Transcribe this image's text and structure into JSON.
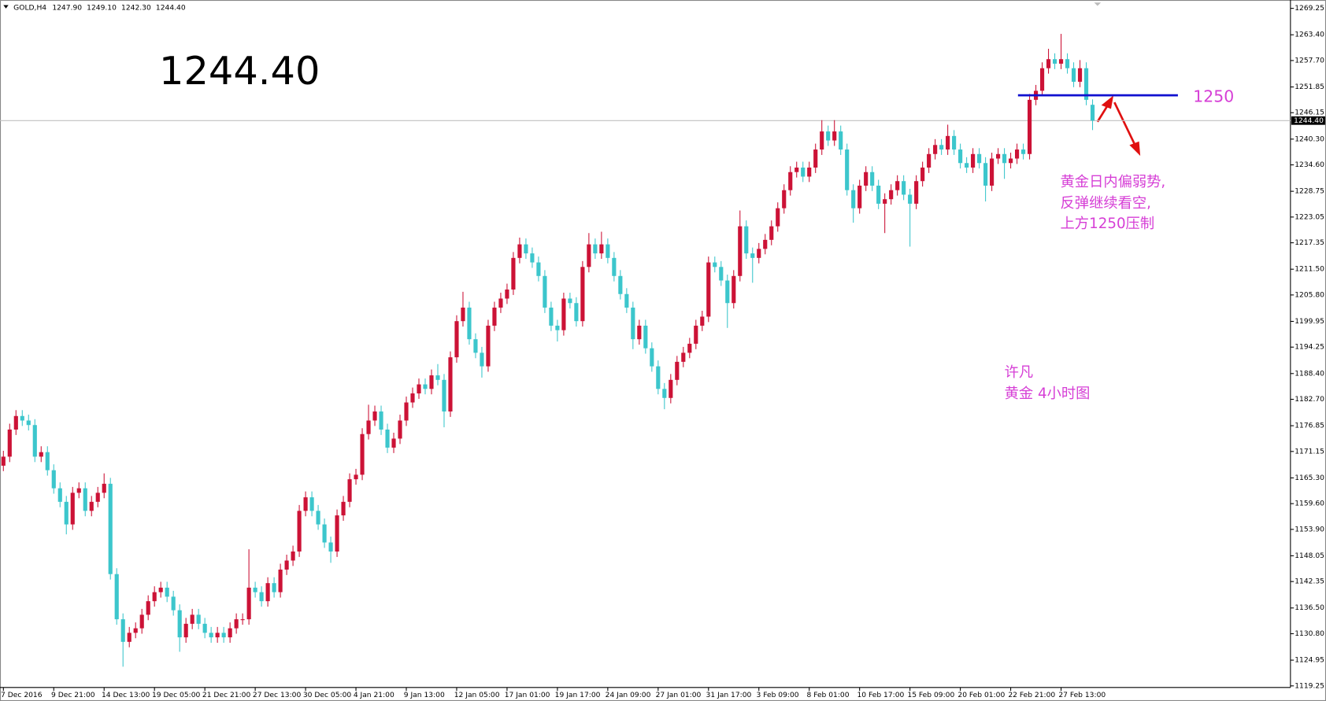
{
  "chart_data": {
    "type": "candlestick",
    "symbol": "GOLD,H4",
    "header_ohlc": [
      "1247.90",
      "1249.10",
      "1242.30",
      "1244.40"
    ],
    "big_price": "1244.40",
    "last_price": {
      "value": 1244.4,
      "label": "1244.40"
    },
    "level": 1250,
    "note": [
      "黄金日内偏弱势,",
      "反弹继续看空,",
      "上方1250压制"
    ],
    "author": [
      "许凡",
      "黄金 4小时图"
    ],
    "bull_color": "#cc1236",
    "bear_color": "#3cc6cc",
    "level_color": "#1010d0",
    "ylim": [
      1118.9,
      1271.1
    ],
    "yticks": [
      1269.25,
      {
        "value": 1263.4,
        "label": "1263.40"
      },
      {
        "value": 1257.7,
        "label": "1257.70"
      },
      1251.85,
      1246.15,
      {
        "value": 1240.3,
        "label": "1240.30"
      },
      {
        "value": 1234.6,
        "label": "1234.60"
      },
      1228.75,
      1223.05,
      1217.35,
      {
        "value": 1211.5,
        "label": "1211.50"
      },
      {
        "value": 1205.8,
        "label": "1205.80"
      },
      1199.95,
      1194.25,
      {
        "value": 1188.4,
        "label": "1188.40"
      },
      {
        "value": 1182.7,
        "label": "1182.70"
      },
      1176.85,
      1171.15,
      {
        "value": 1165.3,
        "label": "1165.30"
      },
      {
        "value": 1159.6,
        "label": "1159.60"
      },
      {
        "value": 1153.9,
        "label": "1153.90"
      },
      1148.05,
      1142.35,
      {
        "value": 1136.5,
        "label": "1136.50"
      },
      {
        "value": 1130.8,
        "label": "1130.80"
      },
      1124.95,
      1119.25
    ],
    "categories": [
      "7 Dec 2016",
      null,
      null,
      null,
      null,
      null,
      null,
      null,
      "9 Dec 21:00",
      null,
      null,
      null,
      null,
      null,
      null,
      null,
      "14 Dec 13:00",
      null,
      null,
      null,
      null,
      null,
      null,
      null,
      "19 Dec 05:00",
      null,
      null,
      null,
      null,
      null,
      null,
      null,
      "21 Dec 21:00",
      null,
      null,
      null,
      null,
      null,
      null,
      null,
      "27 Dec 13:00",
      null,
      null,
      null,
      null,
      null,
      null,
      null,
      "30 Dec 05:00",
      null,
      null,
      null,
      null,
      null,
      null,
      null,
      "4 Jan 21:00",
      null,
      null,
      null,
      null,
      null,
      null,
      null,
      "9 Jan 13:00",
      null,
      null,
      null,
      null,
      null,
      null,
      null,
      "12 Jan 05:00",
      null,
      null,
      null,
      null,
      null,
      null,
      null,
      "17 Jan 01:00",
      null,
      null,
      null,
      null,
      null,
      null,
      null,
      "19 Jan 17:00",
      null,
      null,
      null,
      null,
      null,
      null,
      null,
      "24 Jan 09:00",
      null,
      null,
      null,
      null,
      null,
      null,
      null,
      "27 Jan 01:00",
      null,
      null,
      null,
      null,
      null,
      null,
      null,
      "31 Jan 17:00",
      null,
      null,
      null,
      null,
      null,
      null,
      null,
      "3 Feb 09:00",
      null,
      null,
      null,
      null,
      null,
      null,
      null,
      "8 Feb 01:00",
      null,
      null,
      null,
      null,
      null,
      null,
      null,
      "10 Feb 17:00",
      null,
      null,
      null,
      null,
      null,
      null,
      null,
      "15 Feb 09:00",
      null,
      null,
      null,
      null,
      null,
      null,
      null,
      "20 Feb 01:00",
      null,
      null,
      null,
      null,
      null,
      null,
      null,
      "22 Feb 21:00",
      null,
      null,
      null,
      null,
      null,
      null,
      null,
      "27 Feb 13:00",
      null,
      null,
      null,
      null,
      null
    ],
    "ohlc": [
      [
        1168,
        1171.3,
        1166.8,
        1170
      ],
      [
        1170,
        1177.3,
        1168.8,
        1176
      ],
      [
        1176,
        1180.3,
        1174.8,
        1179
      ],
      [
        1179,
        1180.3,
        1176.8,
        1178
      ],
      [
        1178,
        1179.3,
        1175.8,
        1177
      ],
      [
        1177,
        1178.3,
        1168.8,
        1170
      ],
      [
        1170,
        1172.3,
        1168.8,
        1171
      ],
      [
        1171,
        1172.3,
        1165.8,
        1167
      ],
      [
        1167,
        1168.3,
        1161.8,
        1163
      ],
      [
        1163,
        1164.3,
        1158.8,
        1160
      ],
      [
        1160,
        1161.3,
        1152.8,
        1155
      ],
      [
        1155,
        1163.3,
        1153.8,
        1162
      ],
      [
        1162,
        1164.3,
        1160.8,
        1163
      ],
      [
        1163,
        1164.3,
        1156.8,
        1158
      ],
      [
        1158,
        1161.3,
        1156.8,
        1160
      ],
      [
        1160,
        1163.3,
        1158.8,
        1162
      ],
      [
        1162,
        1166.3,
        1160.8,
        1164
      ],
      [
        1164,
        1165.3,
        1142.8,
        1144
      ],
      [
        1144,
        1145.3,
        1132.8,
        1134
      ],
      [
        1134,
        1135.3,
        1123.5,
        1129
      ],
      [
        1129,
        1132.3,
        1127.8,
        1131
      ],
      [
        1131,
        1133.3,
        1129.8,
        1132
      ],
      [
        1132,
        1136.3,
        1130.8,
        1135
      ],
      [
        1135,
        1139.3,
        1133.8,
        1138
      ],
      [
        1138,
        1141.3,
        1136.8,
        1140
      ],
      [
        1140,
        1142.3,
        1138.8,
        1141
      ],
      [
        1141,
        1142.3,
        1137.8,
        1139
      ],
      [
        1139,
        1140.3,
        1134.8,
        1136
      ],
      [
        1136,
        1137.3,
        1126.8,
        1130
      ],
      [
        1130,
        1134.3,
        1128.8,
        1133
      ],
      [
        1133,
        1136.3,
        1131.8,
        1135
      ],
      [
        1135,
        1136.3,
        1131.8,
        1133
      ],
      [
        1133,
        1134.3,
        1129.8,
        1131
      ],
      [
        1131,
        1132.3,
        1128.8,
        1130
      ],
      [
        1130,
        1132.3,
        1128.8,
        1131
      ],
      [
        1131,
        1132.3,
        1128.8,
        1130
      ],
      [
        1130,
        1133.3,
        1128.8,
        1132
      ],
      [
        1132,
        1135.3,
        1130.8,
        1134
      ],
      [
        1134,
        1135.3,
        1132.8,
        1134
      ],
      [
        1134,
        1149.5,
        1132.8,
        1141
      ],
      [
        1141,
        1142.3,
        1138.8,
        1140
      ],
      [
        1140,
        1141.3,
        1136.8,
        1138
      ],
      [
        1138,
        1143.3,
        1136.8,
        1142
      ],
      [
        1142,
        1143.3,
        1138.8,
        1140
      ],
      [
        1140,
        1146.3,
        1138.8,
        1145
      ],
      [
        1145,
        1148.3,
        1143.8,
        1147
      ],
      [
        1147,
        1150.3,
        1145.8,
        1149
      ],
      [
        1149,
        1159.3,
        1147.8,
        1158
      ],
      [
        1158,
        1162.3,
        1156.8,
        1161
      ],
      [
        1161,
        1162.3,
        1156.8,
        1158
      ],
      [
        1158,
        1159.3,
        1153.8,
        1155
      ],
      [
        1155,
        1156.3,
        1149.8,
        1151
      ],
      [
        1151,
        1152.3,
        1146.5,
        1149
      ],
      [
        1149,
        1158.3,
        1147.8,
        1157
      ],
      [
        1157,
        1161.3,
        1155.8,
        1160
      ],
      [
        1160,
        1166.3,
        1158.8,
        1165
      ],
      [
        1165,
        1167.3,
        1163.8,
        1166
      ],
      [
        1166,
        1176.3,
        1164.8,
        1175
      ],
      [
        1175,
        1181.5,
        1173.8,
        1178
      ],
      [
        1178,
        1181.3,
        1176.8,
        1180
      ],
      [
        1180,
        1181.3,
        1174.8,
        1176
      ],
      [
        1176,
        1177.3,
        1170.8,
        1172
      ],
      [
        1172,
        1175.3,
        1170.8,
        1174
      ],
      [
        1174,
        1179.3,
        1172.8,
        1178
      ],
      [
        1178,
        1183.3,
        1176.8,
        1182
      ],
      [
        1182,
        1185.3,
        1180.8,
        1184
      ],
      [
        1184,
        1187.3,
        1182.8,
        1186
      ],
      [
        1186,
        1187.3,
        1183.8,
        1185
      ],
      [
        1185,
        1189.3,
        1183.8,
        1188
      ],
      [
        1188,
        1190.5,
        1185.8,
        1187
      ],
      [
        1187,
        1188.3,
        1176.5,
        1180
      ],
      [
        1180,
        1193.3,
        1178.8,
        1192
      ],
      [
        1192,
        1201.3,
        1190.8,
        1200
      ],
      [
        1200,
        1206.5,
        1198.8,
        1203
      ],
      [
        1203,
        1204.3,
        1194.8,
        1196
      ],
      [
        1196,
        1197.3,
        1191.8,
        1193
      ],
      [
        1193,
        1194.3,
        1187.5,
        1190
      ],
      [
        1190,
        1200.3,
        1188.8,
        1199
      ],
      [
        1199,
        1204.3,
        1197.8,
        1203
      ],
      [
        1203,
        1206.3,
        1201.8,
        1205
      ],
      [
        1205,
        1208.3,
        1203.8,
        1207
      ],
      [
        1207,
        1215.3,
        1205.8,
        1214
      ],
      [
        1214,
        1218.5,
        1212.8,
        1217
      ],
      [
        1217,
        1218.3,
        1213.8,
        1215
      ],
      [
        1215,
        1216.3,
        1211.8,
        1213
      ],
      [
        1213,
        1214.3,
        1208.8,
        1210
      ],
      [
        1210,
        1211.3,
        1201.8,
        1203
      ],
      [
        1203,
        1204.3,
        1197.8,
        1199
      ],
      [
        1199,
        1200.3,
        1195.5,
        1198
      ],
      [
        1198,
        1206.3,
        1196.8,
        1205
      ],
      [
        1205,
        1206.3,
        1202.8,
        1204
      ],
      [
        1204,
        1205.3,
        1198.8,
        1200
      ],
      [
        1200,
        1213.3,
        1198.8,
        1212
      ],
      [
        1212,
        1219.5,
        1210.8,
        1217
      ],
      [
        1217,
        1218.3,
        1213.8,
        1215
      ],
      [
        1215,
        1219.8,
        1213.8,
        1217
      ],
      [
        1217,
        1218.3,
        1212.8,
        1214
      ],
      [
        1214,
        1215.3,
        1208.8,
        1210
      ],
      [
        1210,
        1211.3,
        1204.8,
        1206
      ],
      [
        1206,
        1207.3,
        1201.8,
        1203
      ],
      [
        1203,
        1204.3,
        1193.8,
        1196
      ],
      [
        1196,
        1200.3,
        1194.8,
        1199
      ],
      [
        1199,
        1200.3,
        1192.8,
        1194
      ],
      [
        1194,
        1195.3,
        1188.8,
        1190
      ],
      [
        1190,
        1191.3,
        1183.8,
        1185
      ],
      [
        1185,
        1186.3,
        1180.5,
        1183
      ],
      [
        1183,
        1188.3,
        1181.8,
        1187
      ],
      [
        1187,
        1192.3,
        1185.8,
        1191
      ],
      [
        1191,
        1194.3,
        1189.8,
        1193
      ],
      [
        1193,
        1196.3,
        1191.8,
        1195
      ],
      [
        1195,
        1200.3,
        1193.8,
        1199
      ],
      [
        1199,
        1202.3,
        1197.8,
        1201
      ],
      [
        1201,
        1214.3,
        1199.8,
        1213
      ],
      [
        1213,
        1214.3,
        1210.8,
        1212
      ],
      [
        1212,
        1213.3,
        1207.8,
        1209
      ],
      [
        1209,
        1210.3,
        1198.5,
        1204
      ],
      [
        1204,
        1211.3,
        1202.8,
        1210
      ],
      [
        1210,
        1224.5,
        1208.8,
        1221
      ],
      [
        1221,
        1222.3,
        1213.8,
        1215
      ],
      [
        1215,
        1216.3,
        1208.5,
        1214
      ],
      [
        1214,
        1217.3,
        1212.8,
        1216
      ],
      [
        1216,
        1219.3,
        1214.8,
        1218
      ],
      [
        1218,
        1222.3,
        1216.8,
        1221
      ],
      [
        1221,
        1226.3,
        1219.8,
        1225
      ],
      [
        1225,
        1230.3,
        1223.8,
        1229
      ],
      [
        1229,
        1234.3,
        1227.8,
        1233
      ],
      [
        1233,
        1235.3,
        1231.8,
        1234
      ],
      [
        1234,
        1235.3,
        1230.8,
        1232
      ],
      [
        1232,
        1235.3,
        1230.8,
        1234
      ],
      [
        1234,
        1239.3,
        1232.8,
        1238
      ],
      [
        1238,
        1244.5,
        1236.8,
        1242
      ],
      [
        1242,
        1243.3,
        1238.8,
        1240
      ],
      [
        1240,
        1244.5,
        1238.8,
        1242
      ],
      [
        1242,
        1243.3,
        1236.8,
        1238
      ],
      [
        1238,
        1239.3,
        1227.8,
        1229
      ],
      [
        1229,
        1230.3,
        1221.8,
        1225
      ],
      [
        1225,
        1231.3,
        1223.8,
        1230
      ],
      [
        1230,
        1234.3,
        1228.8,
        1233
      ],
      [
        1233,
        1234.3,
        1228.8,
        1230
      ],
      [
        1230,
        1231.3,
        1224.8,
        1226
      ],
      [
        1226,
        1228.3,
        1219.5,
        1227
      ],
      [
        1227,
        1230.3,
        1225.8,
        1229
      ],
      [
        1229,
        1232.3,
        1227.8,
        1231
      ],
      [
        1231,
        1232.3,
        1226.8,
        1228
      ],
      [
        1228,
        1229.3,
        1216.5,
        1226
      ],
      [
        1226,
        1232.3,
        1224.8,
        1231
      ],
      [
        1231,
        1235.3,
        1229.8,
        1234
      ],
      [
        1234,
        1238.3,
        1232.8,
        1237
      ],
      [
        1237,
        1240.3,
        1235.8,
        1239
      ],
      [
        1239,
        1240.3,
        1236.8,
        1238
      ],
      [
        1238,
        1243.5,
        1236.8,
        1241
      ],
      [
        1241,
        1242.3,
        1236.8,
        1238
      ],
      [
        1238,
        1239.3,
        1233.8,
        1235
      ],
      [
        1235,
        1236.3,
        1232.8,
        1234
      ],
      [
        1234,
        1238.3,
        1232.8,
        1237
      ],
      [
        1237,
        1238.3,
        1233.8,
        1235
      ],
      [
        1235,
        1236.3,
        1226.5,
        1230
      ],
      [
        1230,
        1237.3,
        1228.8,
        1236
      ],
      [
        1236,
        1238.3,
        1234.8,
        1237
      ],
      [
        1237,
        1238.3,
        1231.5,
        1235
      ],
      [
        1235,
        1237.3,
        1233.8,
        1236
      ],
      [
        1236,
        1239.3,
        1234.8,
        1238
      ],
      [
        1238,
        1239.3,
        1235.8,
        1237
      ],
      [
        1237,
        1250.3,
        1235.8,
        1249
      ],
      [
        1249,
        1252.3,
        1247.8,
        1251
      ],
      [
        1251,
        1257.3,
        1249.8,
        1256
      ],
      [
        1256,
        1260.3,
        1254.8,
        1258
      ],
      [
        1258,
        1259.3,
        1255.8,
        1257
      ],
      [
        1257,
        1263.6,
        1255.8,
        1258
      ],
      [
        1258,
        1259.3,
        1254.8,
        1256
      ],
      [
        1256,
        1257.3,
        1251.8,
        1253
      ],
      [
        1253,
        1257.8,
        1251.8,
        1256
      ],
      [
        1256,
        1257.3,
        1247.8,
        1249
      ],
      [
        1247.9,
        1249.1,
        1242.3,
        1244.4
      ]
    ]
  }
}
